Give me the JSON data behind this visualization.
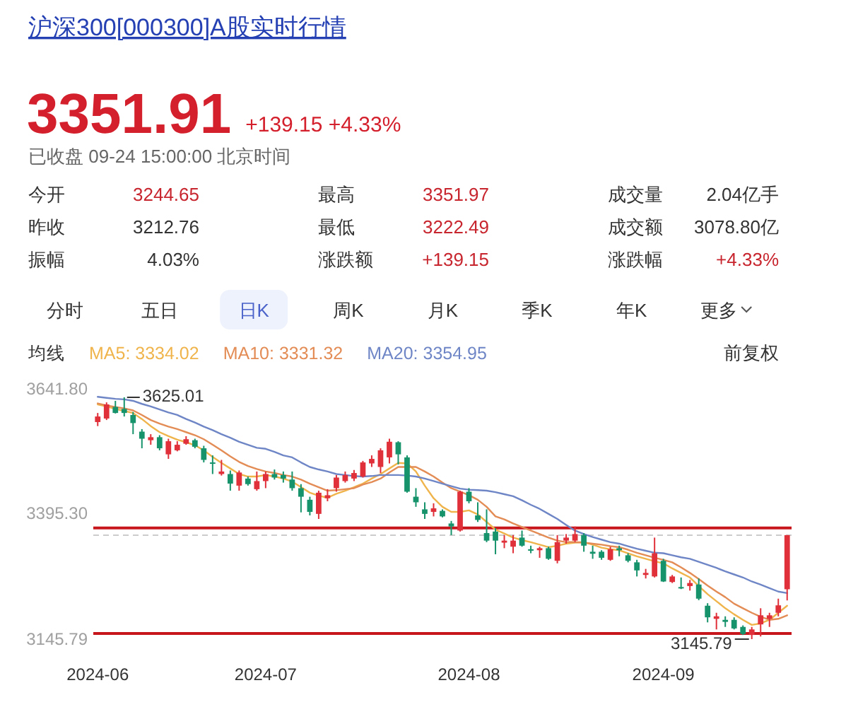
{
  "chart_data": [
    {
      "type": "other",
      "title": "沪深300[000300]A股实时行情",
      "annotations": [
        "3351.91",
        "+139.15 +4.33%",
        "已收盘 09-24 15:00:00 北京时间",
        "今开",
        "3244.65",
        "最高",
        "3351.97",
        "成交量",
        "2.04亿手",
        "昨收",
        "3212.76",
        "最低",
        "3222.49",
        "成交额",
        "3078.80亿",
        "振幅",
        "4.03%",
        "涨跌额",
        "+139.15",
        "涨跌幅",
        "+4.33%",
        "分时",
        "五日",
        "日K",
        "周K",
        "月K",
        "季K",
        "年K",
        "更多"
      ],
      "colors": [
        "#d4202c",
        "#d4202c",
        "#666666",
        "#333333",
        "#c8262f",
        "#333333",
        "#c8262f",
        "#333333",
        "#333333",
        "#333333",
        "#333333",
        "#333333",
        "#c8262f",
        "#333333",
        "#333333",
        "#333333",
        "#333333",
        "#333333",
        "#c8262f",
        "#333333",
        "#c8262f",
        "#333333",
        "#333333",
        "#4a62c9",
        "#333333",
        "#333333",
        "#333333",
        "#333333",
        "#333333"
      ]
    },
    {
      "type": "candlestick",
      "categories": [
        "2024-06",
        null,
        null,
        null,
        null,
        null,
        null,
        null,
        null,
        null,
        null,
        null,
        null,
        null,
        null,
        null,
        null,
        null,
        null,
        "2024-07",
        null,
        null,
        null,
        null,
        null,
        null,
        null,
        null,
        null,
        null,
        null,
        null,
        null,
        null,
        null,
        null,
        null,
        null,
        null,
        null,
        null,
        null,
        "2024-08",
        null,
        null,
        null,
        null,
        null,
        null,
        null,
        null,
        null,
        null,
        null,
        null,
        null,
        null,
        null,
        null,
        null,
        null,
        null,
        null,
        null,
        "2024-09",
        null,
        null,
        null,
        null,
        null,
        null,
        null,
        null,
        null,
        null,
        null,
        null,
        null,
        null
      ],
      "ohlc": [
        [
          3576,
          3594,
          3568,
          3587
        ],
        [
          3583,
          3615,
          3580,
          3611
        ],
        [
          3606,
          3618,
          3593,
          3594
        ],
        [
          3602,
          3625.01,
          3587,
          3594
        ],
        [
          3590,
          3596,
          3552,
          3574
        ],
        [
          3557,
          3562,
          3524,
          3543
        ],
        [
          3540,
          3552,
          3531,
          3546
        ],
        [
          3546,
          3550,
          3520,
          3524
        ],
        [
          3512,
          3543,
          3503,
          3538
        ],
        [
          3520,
          3538,
          3518,
          3531
        ],
        [
          3533,
          3548,
          3531,
          3542
        ],
        [
          3540,
          3543,
          3524,
          3527
        ],
        [
          3524,
          3529,
          3496,
          3501
        ],
        [
          3496,
          3510,
          3473,
          3494
        ],
        [
          3473,
          3501,
          3470,
          3478
        ],
        [
          3473,
          3480,
          3440,
          3454
        ],
        [
          3450,
          3480,
          3440,
          3476
        ],
        [
          3464,
          3468,
          3450,
          3453
        ],
        [
          3443,
          3478,
          3440,
          3459
        ],
        [
          3459,
          3478,
          3445,
          3473
        ],
        [
          3473,
          3482,
          3462,
          3466
        ],
        [
          3471,
          3478,
          3456,
          3464
        ],
        [
          3462,
          3478,
          3440,
          3445
        ],
        [
          3445,
          3453,
          3397,
          3428
        ],
        [
          3422,
          3428,
          3391,
          3398
        ],
        [
          3394,
          3440,
          3384,
          3436
        ],
        [
          3425,
          3443,
          3419,
          3431
        ],
        [
          3445,
          3471,
          3438,
          3466
        ],
        [
          3459,
          3478,
          3456,
          3471
        ],
        [
          3464,
          3481,
          3459,
          3475
        ],
        [
          3468,
          3499,
          3466,
          3496
        ],
        [
          3494,
          3510,
          3487,
          3503
        ],
        [
          3487,
          3524,
          3475,
          3520
        ],
        [
          3506,
          3543,
          3494,
          3537
        ],
        [
          3536,
          3538,
          3492,
          3512
        ],
        [
          3506,
          3510,
          3436,
          3438
        ],
        [
          3428,
          3445,
          3408,
          3417
        ],
        [
          3403,
          3417,
          3384,
          3394
        ],
        [
          3398,
          3415,
          3389,
          3405
        ],
        [
          3400,
          3403,
          3387,
          3389
        ],
        [
          3375,
          3380,
          3352,
          3369
        ],
        [
          3361,
          3440,
          3359,
          3438
        ],
        [
          3438,
          3445,
          3415,
          3419
        ],
        [
          3391,
          3417,
          3378,
          3382
        ],
        [
          3356,
          3403,
          3338,
          3341
        ],
        [
          3359,
          3366,
          3314,
          3341
        ],
        [
          3337,
          3352,
          3326,
          3341
        ],
        [
          3329,
          3352,
          3316,
          3341
        ],
        [
          3347,
          3361,
          3329,
          3331
        ],
        [
          3324,
          3331,
          3316,
          3321
        ],
        [
          3322,
          3329,
          3307,
          3326
        ],
        [
          3326,
          3329,
          3303,
          3305
        ],
        [
          3301,
          3352,
          3296,
          3338
        ],
        [
          3341,
          3354,
          3335,
          3347
        ],
        [
          3341,
          3369,
          3338,
          3354
        ],
        [
          3352,
          3356,
          3319,
          3331
        ],
        [
          3319,
          3331,
          3305,
          3315
        ],
        [
          3319,
          3322,
          3303,
          3307
        ],
        [
          3303,
          3329,
          3301,
          3324
        ],
        [
          3326,
          3331,
          3310,
          3322
        ],
        [
          3312,
          3316,
          3298,
          3301
        ],
        [
          3298,
          3303,
          3270,
          3282
        ],
        [
          3273,
          3285,
          3266,
          3277
        ],
        [
          3270,
          3347,
          3268,
          3316
        ],
        [
          3301,
          3305,
          3259,
          3260
        ],
        [
          3259,
          3273,
          3257,
          3270
        ],
        [
          3249,
          3268,
          3245,
          3247
        ],
        [
          3251,
          3263,
          3242,
          3257
        ],
        [
          3254,
          3266,
          3223,
          3226
        ],
        [
          3212,
          3217,
          3179,
          3189
        ],
        [
          3186,
          3198,
          3165,
          3191
        ],
        [
          3184,
          3191,
          3170,
          3180
        ],
        [
          3184,
          3189,
          3165,
          3167
        ],
        [
          3170,
          3173,
          3154,
          3156
        ],
        [
          3154,
          3170,
          3145.79,
          3165
        ],
        [
          3175,
          3207,
          3151,
          3193
        ],
        [
          3186,
          3198,
          3170,
          3193
        ],
        [
          3198,
          3226,
          3191,
          3212.76
        ],
        [
          3244.65,
          3351.97,
          3222.49,
          3351.91
        ]
      ],
      "colors": [
        "#e0303a",
        "#e0303a",
        "#17936c",
        "#17936c",
        "#17936c",
        "#17936c",
        "#e0303a",
        "#17936c",
        "#e0303a",
        "#e0303a",
        "#e0303a",
        "#17936c",
        "#17936c",
        "#17936c",
        "#e0303a",
        "#17936c",
        "#e0303a",
        "#17936c",
        "#e0303a",
        "#e0303a",
        "#17936c",
        "#17936c",
        "#17936c",
        "#17936c",
        "#17936c",
        "#e0303a",
        "#e0303a",
        "#e0303a",
        "#e0303a",
        "#e0303a",
        "#e0303a",
        "#e0303a",
        "#e0303a",
        "#e0303a",
        "#17936c",
        "#17936c",
        "#17936c",
        "#17936c",
        "#e0303a",
        "#17936c",
        "#17936c",
        "#e0303a",
        "#17936c",
        "#17936c",
        "#17936c",
        "#17936c",
        "#e0303a",
        "#e0303a",
        "#17936c",
        "#17936c",
        "#e0303a",
        "#17936c",
        "#e0303a",
        "#e0303a",
        "#e0303a",
        "#17936c",
        "#17936c",
        "#17936c",
        "#e0303a",
        "#17936c",
        "#17936c",
        "#17936c",
        "#e0303a",
        "#e0303a",
        "#17936c",
        "#e0303a",
        "#17936c",
        "#e0303a",
        "#17936c",
        "#17936c",
        "#e0303a",
        "#17936c",
        "#17936c",
        "#17936c",
        "#e0303a",
        "#e0303a",
        "#e0303a",
        "#e0303a",
        "#e0303a"
      ],
      "series": [
        {
          "type": "line",
          "name": "MA5: 3334.02",
          "color": "#f0b44c",
          "values": [
            3611,
            3607,
            3602,
            3598,
            3594,
            3582,
            3568,
            3556,
            3548,
            3541,
            3536,
            3530,
            3520,
            3507,
            3495,
            3484,
            3473,
            3468,
            3468,
            3471,
            3468,
            3464,
            3458,
            3447,
            3436,
            3430,
            3426,
            3434,
            3440,
            3447,
            3454,
            3464,
            3473,
            3484,
            3495,
            3494,
            3478,
            3450,
            3425,
            3408,
            3398,
            3398,
            3401,
            3393,
            3378,
            3363,
            3355,
            3347,
            3342,
            3338,
            3333,
            3328,
            3331,
            3335,
            3337,
            3338,
            3333,
            3327,
            3324,
            3322,
            3316,
            3310,
            3305,
            3300,
            3296,
            3286,
            3277,
            3268,
            3251,
            3235,
            3221,
            3207,
            3195,
            3184,
            3174,
            3177,
            3184,
            3198,
            3212
          ]
        },
        {
          "type": "line",
          "name": "MA10: 3331.32",
          "color": "#e38c55",
          "values": [
            3613,
            3609,
            3606,
            3603,
            3599,
            3590,
            3580,
            3573,
            3567,
            3562,
            3556,
            3550,
            3542,
            3531,
            3520,
            3508,
            3497,
            3489,
            3483,
            3478,
            3475,
            3471,
            3468,
            3462,
            3454,
            3447,
            3440,
            3441,
            3443,
            3445,
            3452,
            3457,
            3464,
            3476,
            3487,
            3487,
            3487,
            3478,
            3468,
            3456,
            3445,
            3438,
            3431,
            3422,
            3408,
            3389,
            3383,
            3375,
            3368,
            3361,
            3354,
            3347,
            3341,
            3338,
            3338,
            3337,
            3335,
            3333,
            3330,
            3328,
            3323,
            3317,
            3312,
            3307,
            3303,
            3298,
            3288,
            3277,
            3265,
            3252,
            3240,
            3229,
            3216,
            3207,
            3198,
            3190,
            3184,
            3186,
            3193
          ]
        },
        {
          "type": "line",
          "name": "MA20: 3354.95",
          "color": "#6f86c6",
          "values": [
            3626,
            3624,
            3622,
            3621,
            3618,
            3612,
            3607,
            3601,
            3595,
            3590,
            3582,
            3575,
            3567,
            3560,
            3552,
            3545,
            3537,
            3531,
            3525,
            3523,
            3517,
            3510,
            3506,
            3496,
            3487,
            3482,
            3478,
            3473,
            3471,
            3469,
            3468,
            3469,
            3471,
            3471,
            3471,
            3470,
            3468,
            3464,
            3459,
            3454,
            3449,
            3444,
            3442,
            3441,
            3440,
            3437,
            3433,
            3429,
            3421,
            3412,
            3404,
            3394,
            3384,
            3372,
            3361,
            3354,
            3348,
            3343,
            3338,
            3335,
            3330,
            3325,
            3321,
            3317,
            3316,
            3312,
            3308,
            3305,
            3299,
            3293,
            3287,
            3280,
            3274,
            3268,
            3260,
            3254,
            3247,
            3240,
            3237
          ]
        }
      ],
      "legend_title": "均线",
      "legend": "top left",
      "ylim": [
        3145.79,
        3641.8
      ],
      "yticks": [
        3145.79,
        {
          "value": 3395.3,
          "label": "3395.30"
        },
        {
          "value": 3641.8,
          "label": "3641.80"
        }
      ],
      "ref_lines": [
        {
          "axis": "y",
          "value": 3351.91,
          "color": "#cccccc",
          "line_style": "dashed"
        },
        {
          "axis": "y",
          "value": 3366,
          "color": "#c8161d"
        },
        {
          "axis": "y",
          "value": 3157,
          "color": "#c8161d"
        }
      ],
      "annotations": [
        "3625.01",
        {
          "text": "3145.79",
          "y": 3145.79
        },
        "前复权"
      ]
    }
  ]
}
